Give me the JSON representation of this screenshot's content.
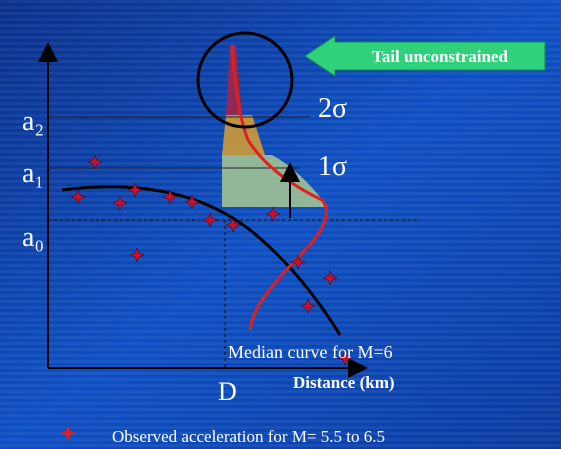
{
  "annotation": {
    "text": "Tail unconstrained"
  },
  "sigma_labels": [
    "2σ",
    "1σ"
  ],
  "y_labels": [
    "a₂",
    "a₁",
    "a₀"
  ],
  "x_label_point": "D",
  "x_axis_title": "Distance (km)",
  "curve_label": "Median curve for M=6",
  "legend": {
    "text": "Observed acceleration for M= 5.5 to 6.5"
  }
}
